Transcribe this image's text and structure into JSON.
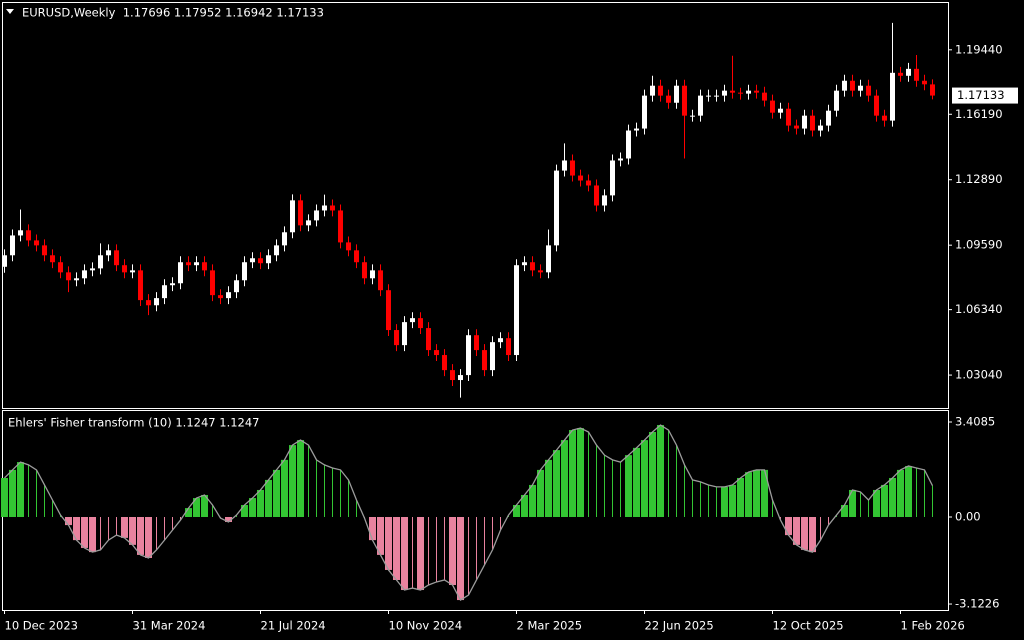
{
  "chart_data": [
    {
      "type": "candlestick",
      "title": "EURUSD,Weekly  1.17696 1.17952 1.16942 1.17133",
      "up_color": "#ffffff",
      "down_color": "#ff0000",
      "categories": [
        "10 Dec 2023",
        null,
        null,
        null,
        null,
        null,
        null,
        null,
        null,
        null,
        null,
        null,
        null,
        null,
        null,
        null,
        "31 Mar 2024",
        null,
        null,
        null,
        null,
        null,
        null,
        null,
        null,
        null,
        null,
        null,
        null,
        null,
        null,
        null,
        "21 Jul 2024",
        null,
        null,
        null,
        null,
        null,
        null,
        null,
        null,
        null,
        null,
        null,
        null,
        null,
        null,
        null,
        "10 Nov 2024",
        null,
        null,
        null,
        null,
        null,
        null,
        null,
        null,
        null,
        null,
        null,
        null,
        null,
        null,
        null,
        "2 Mar 2025",
        null,
        null,
        null,
        null,
        null,
        null,
        null,
        null,
        null,
        null,
        null,
        null,
        null,
        null,
        null,
        "22 Jun 2025",
        null,
        null,
        null,
        null,
        null,
        null,
        null,
        null,
        null,
        null,
        null,
        null,
        null,
        null,
        null,
        "12 Oct 2025",
        null,
        null,
        null,
        null,
        null,
        null,
        null,
        null,
        null,
        null,
        null,
        null,
        null,
        null,
        null,
        "1 Feb 2026",
        null,
        null,
        null,
        null
      ],
      "open": [
        1.085,
        1.0908,
        1.1008,
        1.1034,
        1.0983,
        1.0958,
        1.0908,
        1.0873,
        1.0822,
        1.0782,
        1.0792,
        1.0832,
        1.0842,
        1.0908,
        1.0933,
        1.0858,
        1.0822,
        1.0832,
        1.0682,
        1.0656,
        1.0692,
        1.0757,
        1.0767,
        1.0873,
        1.0858,
        1.0873,
        1.0832,
        1.0707,
        1.0692,
        1.0722,
        1.0782,
        1.0873,
        1.0893,
        1.0868,
        1.0908,
        1.0958,
        1.1024,
        1.1185,
        1.1059,
        1.1084,
        1.1134,
        1.1159,
        1.1134,
        1.0973,
        1.0933,
        1.0873,
        1.0792,
        1.0832,
        1.0732,
        1.0531,
        1.0455,
        1.0571,
        1.0591,
        1.0541,
        1.043,
        1.0405,
        1.0329,
        1.0279,
        1.0304,
        1.0505,
        1.043,
        1.0329,
        1.047,
        1.049,
        1.0405,
        1.0858,
        1.0873,
        1.0832,
        1.0822,
        1.0958,
        1.1335,
        1.1386,
        1.131,
        1.1285,
        1.126,
        1.1159,
        1.121,
        1.1386,
        1.1396,
        1.1537,
        1.1547,
        1.1713,
        1.1763,
        1.1713,
        1.1677,
        1.1763,
        1.1612,
        1.1612,
        1.1713,
        1.1713,
        1.1713,
        1.1738,
        1.1728,
        1.1723,
        1.1738,
        1.1728,
        1.1688,
        1.1627,
        1.1647,
        1.1562,
        1.1547,
        1.1612,
        1.1537,
        1.1562,
        1.1637,
        1.1738,
        1.1788,
        1.1738,
        1.1763,
        1.1713,
        1.1612,
        1.1587,
        1.1828,
        1.1813,
        1.1848,
        1.1788,
        1.17696
      ],
      "high": [
        1.0938,
        1.1038,
        1.1139,
        1.1064,
        1.1013,
        1.0988,
        1.0938,
        1.0903,
        1.0852,
        1.0822,
        1.0862,
        1.0872,
        1.0968,
        1.0963,
        1.0963,
        1.0888,
        1.0862,
        1.0862,
        1.0712,
        1.0722,
        1.0787,
        1.0797,
        1.0903,
        1.0903,
        1.0903,
        1.0903,
        1.0862,
        1.0737,
        1.0752,
        1.0812,
        1.0903,
        1.0923,
        1.0923,
        1.0938,
        1.0988,
        1.1054,
        1.1215,
        1.1215,
        1.1114,
        1.1164,
        1.1214,
        1.1189,
        1.1164,
        1.1003,
        1.0963,
        1.0903,
        1.0862,
        1.0862,
        1.0762,
        1.0561,
        1.0601,
        1.0621,
        1.0621,
        1.0571,
        1.046,
        1.0435,
        1.0359,
        1.0334,
        1.0535,
        1.0535,
        1.046,
        1.05,
        1.052,
        1.052,
        1.0888,
        1.0903,
        1.0903,
        1.0862,
        1.1038,
        1.1365,
        1.1472,
        1.1416,
        1.134,
        1.1315,
        1.129,
        1.124,
        1.1416,
        1.1426,
        1.1567,
        1.1577,
        1.1743,
        1.1813,
        1.1793,
        1.1743,
        1.1793,
        1.1793,
        1.1642,
        1.1743,
        1.1743,
        1.1743,
        1.1768,
        1.1914,
        1.1753,
        1.1768,
        1.1768,
        1.1758,
        1.1718,
        1.1677,
        1.1677,
        1.1592,
        1.1642,
        1.1642,
        1.1592,
        1.1667,
        1.1768,
        1.1818,
        1.1818,
        1.1793,
        1.1793,
        1.1743,
        1.1642,
        1.208,
        1.1858,
        1.1878,
        1.1918,
        1.1818,
        1.17952
      ],
      "low": [
        1.082,
        1.0878,
        1.0978,
        1.0953,
        1.0928,
        1.0878,
        1.0843,
        1.0792,
        1.0722,
        1.0752,
        1.0762,
        1.0802,
        1.0812,
        1.0878,
        1.0828,
        1.0792,
        1.0792,
        1.0652,
        1.0606,
        1.0626,
        1.0662,
        1.0727,
        1.0737,
        1.0828,
        1.0828,
        1.0802,
        1.0677,
        1.0662,
        1.0662,
        1.0692,
        1.0752,
        1.0843,
        1.0838,
        1.0838,
        1.0878,
        1.0928,
        1.0994,
        1.1029,
        1.1029,
        1.1054,
        1.1104,
        1.1104,
        1.0943,
        1.0903,
        1.0843,
        1.0762,
        1.0762,
        1.0702,
        1.0501,
        1.0425,
        1.0425,
        1.0541,
        1.0511,
        1.04,
        1.0375,
        1.0299,
        1.0249,
        1.019,
        1.0274,
        1.04,
        1.0299,
        1.0299,
        1.044,
        1.0375,
        1.0375,
        1.0828,
        1.0802,
        1.0792,
        1.0792,
        1.0928,
        1.1305,
        1.128,
        1.1255,
        1.123,
        1.1129,
        1.1129,
        1.118,
        1.1356,
        1.1366,
        1.1507,
        1.1517,
        1.1683,
        1.1683,
        1.1647,
        1.1647,
        1.1396,
        1.1582,
        1.1582,
        1.1683,
        1.1683,
        1.1683,
        1.1698,
        1.1693,
        1.1693,
        1.1698,
        1.1658,
        1.1597,
        1.1597,
        1.1532,
        1.1517,
        1.1517,
        1.1507,
        1.1507,
        1.1532,
        1.1607,
        1.1708,
        1.1708,
        1.1708,
        1.1683,
        1.1582,
        1.1557,
        1.1557,
        1.1783,
        1.1783,
        1.1758,
        1.174,
        1.16942
      ],
      "close": [
        1.0908,
        1.1008,
        1.1034,
        1.0983,
        1.0958,
        1.0908,
        1.0873,
        1.0822,
        1.0782,
        1.0792,
        1.0832,
        1.0842,
        1.0908,
        1.0933,
        1.0858,
        1.0822,
        1.0832,
        1.0682,
        1.0656,
        1.0692,
        1.0757,
        1.0767,
        1.0873,
        1.0858,
        1.0873,
        1.0832,
        1.0707,
        1.0692,
        1.0722,
        1.0782,
        1.0873,
        1.0893,
        1.0868,
        1.0908,
        1.0958,
        1.1024,
        1.1185,
        1.1059,
        1.1084,
        1.1134,
        1.1159,
        1.1134,
        1.0973,
        1.0933,
        1.0873,
        1.0792,
        1.0832,
        1.0732,
        1.0531,
        1.0455,
        1.0571,
        1.0591,
        1.0541,
        1.043,
        1.0405,
        1.0329,
        1.0279,
        1.0304,
        1.0505,
        1.043,
        1.0329,
        1.047,
        1.049,
        1.0405,
        1.0858,
        1.0873,
        1.0832,
        1.0822,
        1.0958,
        1.1335,
        1.1386,
        1.131,
        1.1285,
        1.126,
        1.1159,
        1.121,
        1.1386,
        1.1396,
        1.1537,
        1.1547,
        1.1713,
        1.1763,
        1.1713,
        1.1677,
        1.1763,
        1.1612,
        1.1612,
        1.1713,
        1.1713,
        1.1713,
        1.1738,
        1.1728,
        1.1723,
        1.1738,
        1.1728,
        1.1688,
        1.1627,
        1.1647,
        1.1562,
        1.1547,
        1.1612,
        1.1537,
        1.1562,
        1.1637,
        1.1738,
        1.1788,
        1.1738,
        1.1763,
        1.1713,
        1.1612,
        1.1587,
        1.1828,
        1.1813,
        1.1848,
        1.1788,
        1.177,
        1.17133
      ],
      "ylim": [
        1.0138,
        1.218
      ],
      "yticks": [
        {
          "value": 1.1944,
          "label": "1.19440"
        },
        {
          "value": 1.1619,
          "label": "1.16190"
        },
        {
          "value": 1.1289,
          "label": "1.12890"
        },
        {
          "value": 1.0959,
          "label": "1.09590"
        },
        {
          "value": 1.0634,
          "label": "1.06340"
        },
        {
          "value": 1.0304,
          "label": "1.03040"
        }
      ],
      "last_price": {
        "value": 1.17133,
        "label": "1.17133"
      }
    },
    {
      "type": "histogram",
      "title": "Ehlers' Fisher transform (10) 1.1247 1.1247",
      "positive_color": "#33c533",
      "negative_color": "#e9839f",
      "line_color": "#9c9c9c",
      "values": [
        1.4,
        1.69,
        1.97,
        1.87,
        1.69,
        1.15,
        0.61,
        0.07,
        -0.29,
        -0.83,
        -1.11,
        -1.26,
        -1.18,
        -0.83,
        -0.65,
        -0.75,
        -1.0,
        -1.36,
        -1.47,
        -1.18,
        -0.83,
        -0.47,
        -0.11,
        0.32,
        0.68,
        0.79,
        0.43,
        -0.04,
        -0.18,
        0.07,
        0.43,
        0.68,
        0.97,
        1.33,
        1.69,
        2.05,
        2.58,
        2.76,
        2.58,
        2.05,
        1.87,
        1.76,
        1.69,
        1.33,
        0.61,
        -0.04,
        -0.83,
        -1.36,
        -1.9,
        -2.26,
        -2.62,
        -2.55,
        -2.62,
        -2.44,
        -2.33,
        -2.26,
        -2.44,
        -2.98,
        -2.8,
        -2.26,
        -1.72,
        -1.18,
        -0.47,
        0.07,
        0.43,
        0.79,
        1.15,
        1.69,
        2.05,
        2.4,
        2.76,
        3.12,
        3.19,
        3.05,
        2.58,
        2.22,
        2.05,
        1.97,
        2.22,
        2.48,
        2.76,
        3.05,
        3.3,
        3.12,
        2.58,
        1.87,
        1.33,
        1.26,
        1.15,
        1.08,
        1.08,
        1.15,
        1.4,
        1.61,
        1.69,
        1.69,
        0.61,
        -0.11,
        -0.65,
        -1.0,
        -1.18,
        -1.26,
        -0.83,
        -0.29,
        0.07,
        0.43,
        0.97,
        0.9,
        0.61,
        0.97,
        1.15,
        1.4,
        1.69,
        1.83,
        1.76,
        1.69,
        1.1247
      ],
      "ylim": [
        -3.3368,
        3.8032
      ],
      "yticks": [
        3.4085,
        {
          "value": 0,
          "label": "0.00"
        },
        -3.1226
      ]
    }
  ]
}
